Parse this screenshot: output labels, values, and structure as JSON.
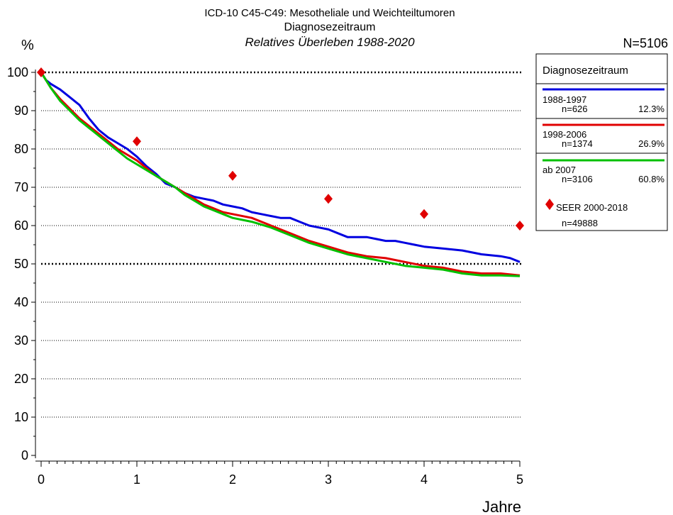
{
  "chart_data": {
    "type": "line",
    "title": "ICD-10 C45-C49: Mesotheliale und Weichteiltumoren",
    "subtitle": "Diagnosezeitraum",
    "subtitle2": "Relatives Überleben 1988-2020",
    "ylabel": "%",
    "xlabel": "Jahre",
    "n_total": "N=5106",
    "xlim": [
      0,
      5
    ],
    "ylim": [
      0,
      100
    ],
    "xticks": [
      0,
      1,
      2,
      3,
      4,
      5
    ],
    "yticks": [
      0,
      10,
      20,
      30,
      40,
      50,
      60,
      70,
      80,
      90,
      100
    ],
    "x_tick_labels": [
      "0",
      "1",
      "2",
      "3",
      "4",
      "5"
    ],
    "y_tick_labels": [
      "0",
      "10",
      "20",
      "30",
      "40",
      "50",
      "60",
      "70",
      "80",
      "90",
      "100"
    ],
    "reference_lines": [
      100,
      50
    ],
    "grid": true,
    "legend_title": "Diagnosezeitraum",
    "legend_position": "right",
    "series": [
      {
        "name": "1988-1997",
        "n": "n=626",
        "pct": "12.3%",
        "color": "#0000e0",
        "x": [
          0,
          0.05,
          0.1,
          0.2,
          0.3,
          0.4,
          0.5,
          0.6,
          0.7,
          0.8,
          0.9,
          1.0,
          1.1,
          1.2,
          1.3,
          1.4,
          1.5,
          1.6,
          1.7,
          1.8,
          1.9,
          2.0,
          2.1,
          2.2,
          2.3,
          2.4,
          2.5,
          2.6,
          2.7,
          2.8,
          2.9,
          3.0,
          3.1,
          3.2,
          3.3,
          3.4,
          3.5,
          3.6,
          3.7,
          3.8,
          3.9,
          4.0,
          4.2,
          4.4,
          4.6,
          4.8,
          4.9,
          5.0
        ],
        "y": [
          100,
          98,
          97,
          95.5,
          93.5,
          91.5,
          88,
          85,
          83,
          81.5,
          80,
          78,
          75.5,
          73.5,
          71,
          70,
          68.5,
          67.5,
          67,
          66.5,
          65.5,
          65,
          64.5,
          63.5,
          63,
          62.5,
          62,
          62,
          61,
          60,
          59.5,
          59,
          58,
          57,
          57,
          57,
          56.5,
          56,
          56,
          55.5,
          55,
          54.5,
          54,
          53.5,
          52.5,
          52,
          51.5,
          50.5
        ]
      },
      {
        "name": "1998-2006",
        "n": "n=1374",
        "pct": "26.9%",
        "color": "#e00000",
        "x": [
          0,
          0.1,
          0.2,
          0.3,
          0.4,
          0.5,
          0.6,
          0.7,
          0.8,
          0.9,
          1.0,
          1.1,
          1.2,
          1.3,
          1.4,
          1.5,
          1.6,
          1.7,
          1.8,
          1.9,
          2.0,
          2.2,
          2.4,
          2.6,
          2.8,
          3.0,
          3.2,
          3.4,
          3.6,
          3.8,
          4.0,
          4.2,
          4.4,
          4.6,
          4.8,
          5.0
        ],
        "y": [
          100,
          96,
          93,
          90.5,
          88,
          86,
          84,
          82,
          80,
          78.5,
          77,
          75,
          73,
          71.5,
          70,
          68.5,
          67,
          65.5,
          64.5,
          63.5,
          63,
          62,
          60,
          58,
          56,
          54.5,
          53,
          52,
          51.5,
          50.5,
          49.5,
          49,
          48,
          47.5,
          47.5,
          47
        ]
      },
      {
        "name": "ab 2007",
        "n": "n=3106",
        "pct": "60.8%",
        "color": "#00c000",
        "x": [
          0,
          0.1,
          0.2,
          0.3,
          0.4,
          0.5,
          0.6,
          0.7,
          0.8,
          0.9,
          1.0,
          1.1,
          1.2,
          1.3,
          1.4,
          1.5,
          1.6,
          1.7,
          1.8,
          1.9,
          2.0,
          2.2,
          2.4,
          2.6,
          2.8,
          3.0,
          3.2,
          3.4,
          3.6,
          3.8,
          4.0,
          4.2,
          4.4,
          4.6,
          4.8,
          5.0
        ],
        "y": [
          100,
          96,
          92.5,
          90,
          87.5,
          85.5,
          83.5,
          81.5,
          79.5,
          77.5,
          76,
          74.5,
          73,
          71.5,
          70,
          68,
          66.5,
          65,
          64,
          63,
          62,
          61,
          59.5,
          57.5,
          55.5,
          54,
          52.5,
          51.5,
          50.5,
          49.5,
          49,
          48.5,
          47.5,
          47,
          47,
          46.8
        ]
      }
    ],
    "reference_points": {
      "name": "SEER 2000-2018",
      "n": "n=49888",
      "color": "#e00000",
      "x": [
        0,
        1,
        2,
        3,
        4,
        5
      ],
      "y": [
        100,
        82,
        73,
        67,
        63,
        60
      ]
    }
  }
}
